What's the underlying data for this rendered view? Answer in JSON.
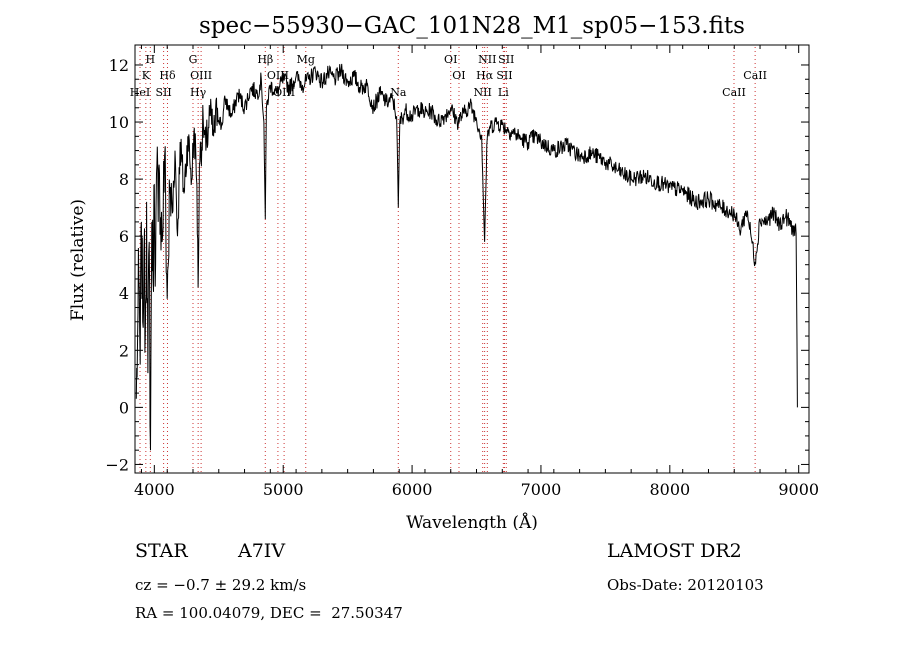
{
  "chart_data": {
    "type": "line",
    "title": "spec−55930−GAC_101N28_M1_sp05−153.fits",
    "xlabel": "Wavelength (Å)",
    "ylabel": "Flux (relative)",
    "xlim": [
      3850,
      9080
    ],
    "ylim": [
      -2.3,
      12.7
    ],
    "xticks": [
      4000,
      5000,
      6000,
      7000,
      8000,
      9000
    ],
    "yticks": [
      -2,
      0,
      2,
      4,
      6,
      8,
      10,
      12
    ],
    "ytick_labels": [
      "−2",
      "0",
      "2",
      "4",
      "6",
      "8",
      "10",
      "12"
    ],
    "grid": false,
    "series": [
      {
        "points": [
          [
            3860,
            0.3
          ],
          [
            3870,
            2.5
          ],
          [
            3880,
            4.5
          ],
          [
            3890,
            1.5
          ],
          [
            3900,
            6.5
          ],
          [
            3910,
            3.0
          ],
          [
            3920,
            5.5
          ],
          [
            3930,
            2.5
          ],
          [
            3940,
            7.2
          ],
          [
            3950,
            1.2
          ],
          [
            3960,
            5.8
          ],
          [
            3970,
            -1.5
          ],
          [
            3980,
            6.5
          ],
          [
            3990,
            4.5
          ],
          [
            4000,
            7.8
          ],
          [
            4010,
            5.0
          ],
          [
            4020,
            8.5
          ],
          [
            4030,
            6.5
          ],
          [
            4040,
            8.2
          ],
          [
            4060,
            5.8
          ],
          [
            4080,
            8.8
          ],
          [
            4100,
            3.8
          ],
          [
            4120,
            7.5
          ],
          [
            4140,
            6.8
          ],
          [
            4160,
            9.0
          ],
          [
            4180,
            6.0
          ],
          [
            4200,
            9.3
          ],
          [
            4230,
            7.5
          ],
          [
            4260,
            9.5
          ],
          [
            4290,
            8.0
          ],
          [
            4310,
            9.8
          ],
          [
            4330,
            7.8
          ],
          [
            4340,
            4.2
          ],
          [
            4350,
            8.5
          ],
          [
            4380,
            10.0
          ],
          [
            4400,
            9.0
          ],
          [
            4430,
            10.3
          ],
          [
            4460,
            9.5
          ],
          [
            4490,
            10.5
          ],
          [
            4520,
            9.8
          ],
          [
            4550,
            10.8
          ],
          [
            4600,
            10.2
          ],
          [
            4650,
            11.0
          ],
          [
            4700,
            10.5
          ],
          [
            4750,
            11.2
          ],
          [
            4800,
            11.0
          ],
          [
            4830,
            11.5
          ],
          [
            4850,
            10.0
          ],
          [
            4861,
            6.6
          ],
          [
            4870,
            10.5
          ],
          [
            4900,
            11.3
          ],
          [
            4950,
            11.0
          ],
          [
            5000,
            11.5
          ],
          [
            5050,
            11.2
          ],
          [
            5100,
            11.6
          ],
          [
            5150,
            11.3
          ],
          [
            5200,
            11.5
          ],
          [
            5250,
            11.8
          ],
          [
            5300,
            11.4
          ],
          [
            5350,
            11.7
          ],
          [
            5400,
            11.5
          ],
          [
            5450,
            11.8
          ],
          [
            5500,
            11.4
          ],
          [
            5550,
            11.6
          ],
          [
            5600,
            11.2
          ],
          [
            5650,
            11.3
          ],
          [
            5700,
            10.5
          ],
          [
            5750,
            11.0
          ],
          [
            5800,
            10.7
          ],
          [
            5850,
            10.8
          ],
          [
            5880,
            10.2
          ],
          [
            5893,
            7.0
          ],
          [
            5905,
            10.0
          ],
          [
            5950,
            10.4
          ],
          [
            6000,
            10.2
          ],
          [
            6050,
            10.5
          ],
          [
            6100,
            10.3
          ],
          [
            6150,
            10.4
          ],
          [
            6200,
            10.0
          ],
          [
            6250,
            10.2
          ],
          [
            6300,
            10.5
          ],
          [
            6350,
            10.0
          ],
          [
            6400,
            10.3
          ],
          [
            6450,
            10.6
          ],
          [
            6500,
            10.1
          ],
          [
            6540,
            9.5
          ],
          [
            6563,
            5.8
          ],
          [
            6580,
            9.2
          ],
          [
            6600,
            9.8
          ],
          [
            6650,
            10.0
          ],
          [
            6700,
            9.9
          ],
          [
            6750,
            9.7
          ],
          [
            6800,
            9.6
          ],
          [
            6850,
            9.4
          ],
          [
            6900,
            9.3
          ],
          [
            6950,
            9.5
          ],
          [
            7000,
            9.3
          ],
          [
            7100,
            9.0
          ],
          [
            7200,
            9.2
          ],
          [
            7300,
            8.8
          ],
          [
            7400,
            8.9
          ],
          [
            7500,
            8.6
          ],
          [
            7600,
            8.3
          ],
          [
            7700,
            8.0
          ],
          [
            7800,
            8.1
          ],
          [
            7900,
            7.9
          ],
          [
            8000,
            7.7
          ],
          [
            8100,
            7.6
          ],
          [
            8200,
            7.2
          ],
          [
            8300,
            7.3
          ],
          [
            8400,
            7.0
          ],
          [
            8500,
            6.8
          ],
          [
            8542,
            6.2
          ],
          [
            8600,
            6.9
          ],
          [
            8662,
            5.1
          ],
          [
            8700,
            6.6
          ],
          [
            8750,
            6.5
          ],
          [
            8800,
            6.8
          ],
          [
            8850,
            6.4
          ],
          [
            8900,
            6.7
          ],
          [
            8950,
            6.3
          ],
          [
            8980,
            6.1
          ],
          [
            8990,
            0.0
          ]
        ]
      }
    ],
    "lines": [
      {
        "x": 3889,
        "labels": [
          "HeI"
        ],
        "rows": [
          2
        ]
      },
      {
        "x": 3934,
        "labels": [
          "K"
        ],
        "rows": [
          1
        ]
      },
      {
        "x": 3969,
        "labels": [
          "H"
        ],
        "rows": [
          0
        ]
      },
      {
        "x": 4072,
        "labels": [
          "SII"
        ],
        "rows": [
          2
        ]
      },
      {
        "x": 4102,
        "labels": [
          "Hδ"
        ],
        "rows": [
          1
        ]
      },
      {
        "x": 4300,
        "labels": [
          "G"
        ],
        "rows": [
          0
        ]
      },
      {
        "x": 4340,
        "labels": [
          "Hγ"
        ],
        "rows": [
          2
        ]
      },
      {
        "x": 4363,
        "labels": [
          "OIII"
        ],
        "rows": [
          1
        ]
      },
      {
        "x": 4861,
        "labels": [
          "Hβ"
        ],
        "rows": [
          0
        ]
      },
      {
        "x": 4959,
        "labels": [
          "OIII"
        ],
        "rows": [
          1
        ]
      },
      {
        "x": 5007,
        "labels": [
          "OIII"
        ],
        "rows": [
          2
        ]
      },
      {
        "x": 5175,
        "labels": [
          "Mg"
        ],
        "rows": [
          0
        ]
      },
      {
        "x": 5893,
        "labels": [
          "Na"
        ],
        "rows": [
          2
        ]
      },
      {
        "x": 6300,
        "labels": [
          "OI"
        ],
        "rows": [
          0
        ]
      },
      {
        "x": 6364,
        "labels": [
          "OI"
        ],
        "rows": [
          1
        ]
      },
      {
        "x": 6548,
        "labels": [
          "NII"
        ],
        "rows": [
          2
        ]
      },
      {
        "x": 6563,
        "labels": [
          "Hα"
        ],
        "rows": [
          1
        ]
      },
      {
        "x": 6584,
        "labels": [
          "NII"
        ],
        "rows": [
          0
        ]
      },
      {
        "x": 6708,
        "labels": [
          "Li"
        ],
        "rows": [
          2
        ]
      },
      {
        "x": 6717,
        "labels": [
          "SII"
        ],
        "rows": [
          1
        ]
      },
      {
        "x": 6731,
        "labels": [
          "SII"
        ],
        "rows": [
          0
        ]
      },
      {
        "x": 8498,
        "labels": [
          "CaII"
        ],
        "rows": [
          2
        ]
      },
      {
        "x": 8662,
        "labels": [
          "CaII"
        ],
        "rows": [
          1
        ]
      }
    ]
  },
  "info": {
    "object_class": "STAR",
    "subclass": "A7IV",
    "survey": "LAMOST DR2",
    "velocity": "cz = −0.7 ± 29.2 km/s",
    "obs_date": "Obs-Date: 20120103",
    "coords": "RA = 100.04079, DEC =  27.50347"
  },
  "colors": {
    "line_marker": "#cc3333",
    "spectrum": "#000000",
    "axes": "#000000"
  }
}
